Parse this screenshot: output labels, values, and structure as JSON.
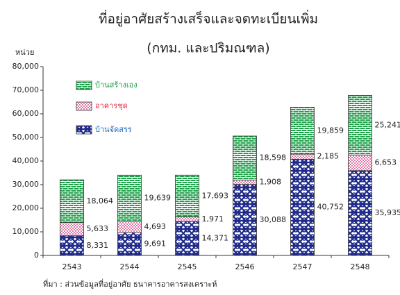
{
  "chart_data": {
    "type": "stacked_bar",
    "title": "ที่อยู่อาศัยสร้างเสร็จและจดทะเบียนเพิ่ม",
    "subtitle": "(กทม. และปริมณฑล)",
    "y_label": "หน่วย",
    "source": "ที่มา : ส่วนข้อมูลที่อยู่อาศัย ธนาคารอาคารสงเคราะห์",
    "categories": [
      "2543",
      "2544",
      "2545",
      "2546",
      "2547",
      "2548"
    ],
    "series": [
      {
        "name": "บ้านจัดสรร",
        "color": "#1f2a8a",
        "legend_color": "#1f6fc0",
        "pattern": "crosshatch",
        "values": [
          8331,
          9691,
          14371,
          30088,
          40752,
          35935
        ],
        "value_labels": [
          "8,331",
          "9,691",
          "14,371",
          "30,088",
          "40,752",
          "35,935"
        ]
      },
      {
        "name": "อาคารชุด",
        "color": "#e07aa8",
        "legend_color": "#e0304a",
        "pattern": "dots",
        "values": [
          5633,
          4693,
          1971,
          1908,
          2185,
          6653
        ],
        "value_labels": [
          "5,633",
          "4,693",
          "1,971",
          "1,908",
          "2,185",
          "6,653"
        ]
      },
      {
        "name": "บ้านสร้างเอง",
        "color": "#1ea04a",
        "legend_color": "#1ea04a",
        "pattern": "brick",
        "values": [
          18064,
          19639,
          17693,
          18598,
          19859,
          25241
        ],
        "value_labels": [
          "18,064",
          "19,639",
          "17,693",
          "18,598",
          "19,859",
          "25,241"
        ]
      }
    ],
    "ylim": [
      0,
      80000
    ],
    "yticks": [
      {
        "value": 0,
        "label": "0"
      },
      {
        "value": 10000,
        "label": "10,000"
      },
      {
        "value": 20000,
        "label": "20,000"
      },
      {
        "value": 30000,
        "label": "30,000"
      },
      {
        "value": 40000,
        "label": "40,000"
      },
      {
        "value": 50000,
        "label": "50,000"
      },
      {
        "value": 60000,
        "label": "60,000"
      },
      {
        "value": 70000,
        "label": "70,000"
      },
      {
        "value": 80000,
        "label": "80,000"
      }
    ]
  }
}
